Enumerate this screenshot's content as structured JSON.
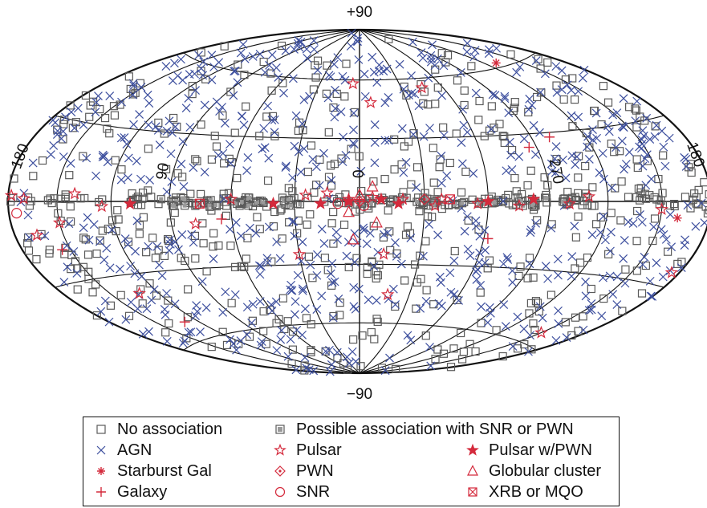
{
  "chart_data": {
    "type": "scatter",
    "projection": "Hammer-Aitoff all-sky, galactic coordinates",
    "grid": true,
    "longitude_labels": [
      "180",
      "90",
      "0",
      "270",
      "180"
    ],
    "latitude_labels": [
      "+90",
      "−90"
    ],
    "legend": {
      "placement": "bottom",
      "entries": [
        {
          "key": "none",
          "label": "No association",
          "color": "#5a5a5a",
          "marker": "open-square"
        },
        {
          "key": "possible",
          "label": "Possible association with SNR or PWN",
          "color": "#5a5a5a",
          "marker": "gray-square"
        },
        {
          "key": "agn",
          "label": "AGN",
          "color": "#3d4f9e",
          "marker": "x"
        },
        {
          "key": "pulsar",
          "label": "Pulsar",
          "color": "#d42a3c",
          "marker": "open-star"
        },
        {
          "key": "pulsar_pwn",
          "label": "Pulsar w/PWN",
          "color": "#d42a3c",
          "marker": "filled-star"
        },
        {
          "key": "starburst",
          "label": "Starburst Gal",
          "color": "#d42a3c",
          "marker": "asterisk"
        },
        {
          "key": "pwn",
          "label": "PWN",
          "color": "#d42a3c",
          "marker": "diamond-dot"
        },
        {
          "key": "globular",
          "label": "Globular cluster",
          "color": "#d42a3c",
          "marker": "triangle"
        },
        {
          "key": "galaxy",
          "label": "Galaxy",
          "color": "#d42a3c",
          "marker": "plus"
        },
        {
          "key": "snr",
          "label": "SNR",
          "color": "#d42a3c",
          "marker": "circle"
        },
        {
          "key": "xrb",
          "label": "XRB or MQO",
          "color": "#d42a3c",
          "marker": "boxed-x"
        }
      ]
    },
    "series": [
      {
        "name": "Pulsar",
        "points": [
          [
            25,
            3
          ],
          [
            5,
            1
          ],
          [
            -6,
            2
          ],
          [
            -20,
            1
          ],
          [
            -38,
            1
          ],
          [
            -55,
            -1
          ],
          [
            -75,
            -2
          ],
          [
            -100,
            -1
          ],
          [
            -150,
            -3
          ],
          [
            125,
            -2
          ],
          [
            140,
            3
          ],
          [
            170,
            1
          ],
          [
            15,
            4
          ],
          [
            60,
            1
          ],
          [
            -35,
            -2
          ],
          [
            -150,
            -55
          ],
          [
            -45,
            55
          ],
          [
            78,
            -10
          ],
          [
            -110,
            2
          ],
          [
            150,
            -8
          ],
          [
            -175,
            -25
          ],
          [
            30,
            -25
          ],
          [
            -12,
            -25
          ],
          [
            132,
            -38
          ],
          [
            -17,
            -45
          ],
          [
            166,
            -12
          ],
          [
            178,
            2
          ],
          [
            5,
            58
          ],
          [
            -7,
            48
          ]
        ]
      },
      {
        "name": "Pulsar w/PWN",
        "points": [
          [
            5,
            0
          ],
          [
            18,
            -1
          ],
          [
            -18,
            -1
          ],
          [
            -60,
            0
          ],
          [
            -82,
            1
          ],
          [
            110,
            -1
          ],
          [
            -10,
            1
          ],
          [
            40,
            -1
          ]
        ]
      },
      {
        "name": "Starburst Gal",
        "points": [
          [
            -130,
            62
          ],
          [
            -160,
            -6
          ]
        ]
      },
      {
        "name": "PWN",
        "points": [
          [
            0,
            0
          ],
          [
            -30,
            1
          ]
        ]
      },
      {
        "name": "Globular cluster",
        "points": [
          [
            5,
            -5
          ],
          [
            -8,
            -10
          ],
          [
            3,
            -18
          ],
          [
            0,
            3
          ],
          [
            -6,
            7
          ]
        ]
      },
      {
        "name": "Galaxy",
        "points": [
          [
            65,
            -8
          ],
          [
            -100,
            28
          ],
          [
            155,
            -18
          ],
          [
            130,
            -52
          ],
          [
            -62,
            -17
          ],
          [
            0,
            0
          ],
          [
            -86,
            24
          ]
        ]
      },
      {
        "name": "SNR",
        "points": [
          [
            175,
            -4
          ],
          [
            10,
            -1
          ],
          [
            -2,
            -2
          ]
        ]
      },
      {
        "name": "XRB or MQO",
        "points": [
          [
            75,
            -1
          ],
          [
            -42,
            1
          ]
        ]
      }
    ],
    "background_counts": {
      "No association": 640,
      "Possible association with SNR or PWN": 60,
      "AGN": 620
    }
  }
}
